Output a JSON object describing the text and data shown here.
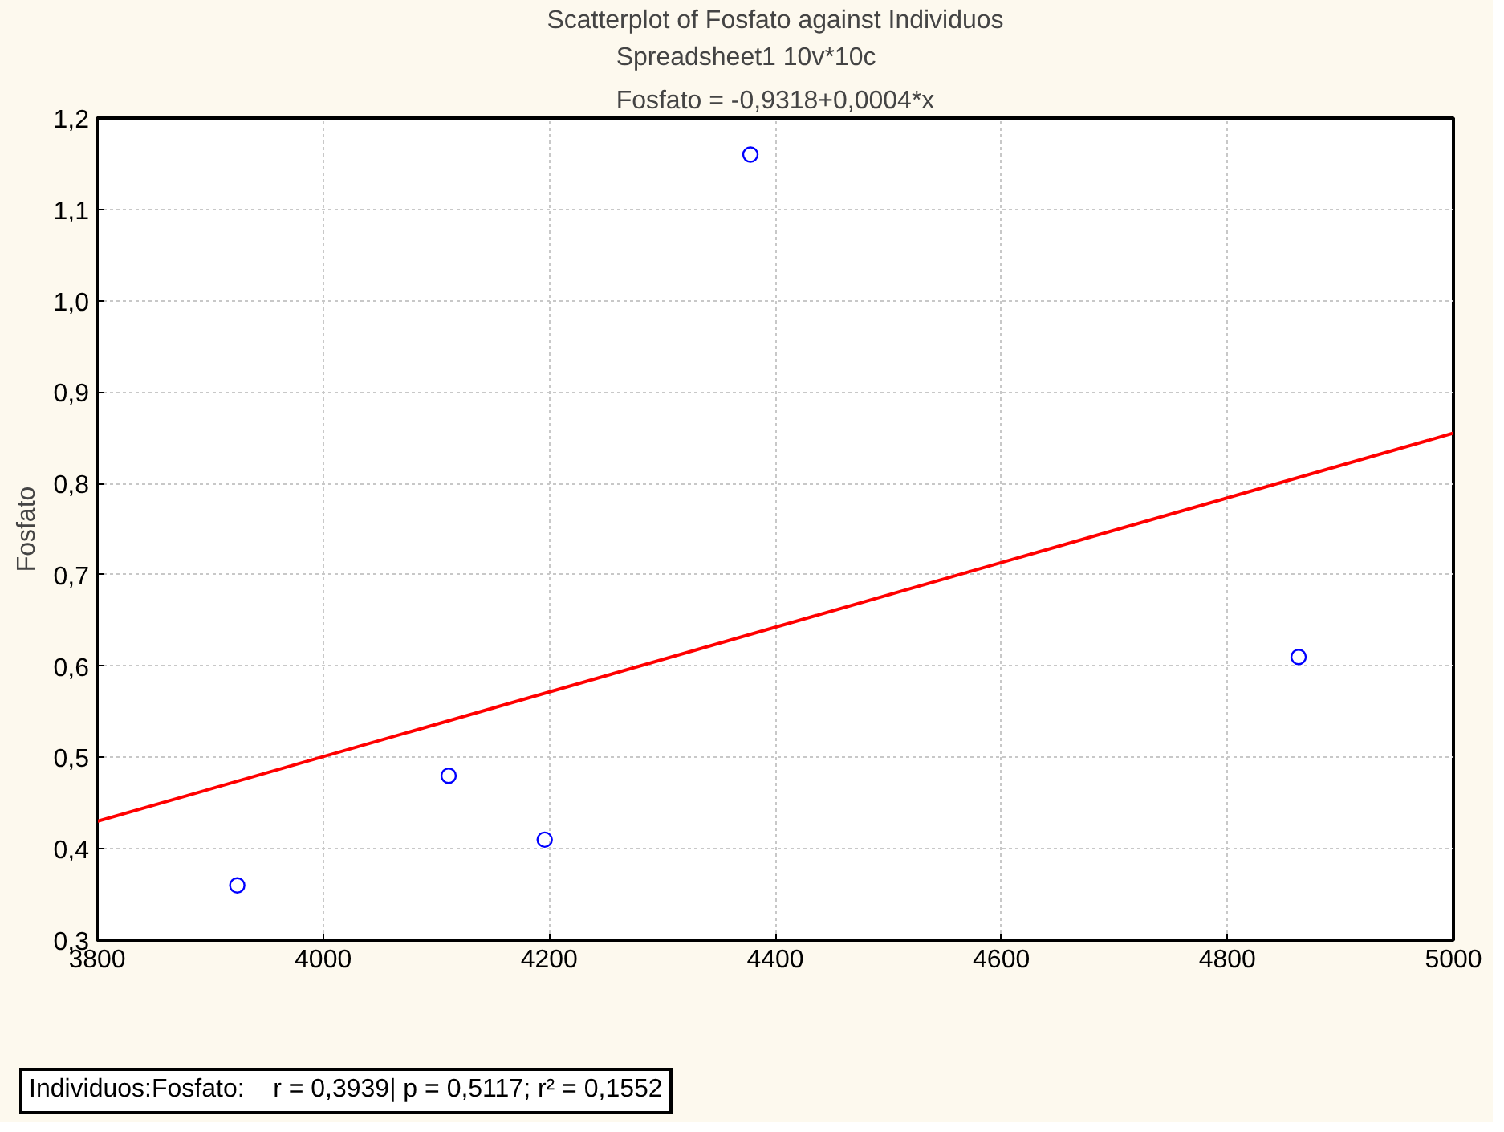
{
  "chart_data": {
    "type": "scatter",
    "title": "Scatterplot of Fosfato against Individuos",
    "subtitle": "Spreadsheet1 10v*10c\nFosfato = -0,9318+0,0004*x",
    "ylabel": "Fosfato",
    "series": [
      {
        "marker": "circle",
        "color": "#0000ff",
        "x": [
          3924,
          4111,
          4196,
          4378,
          4863
        ],
        "values": [
          0.36,
          0.48,
          0.41,
          1.16,
          0.61
        ]
      },
      {
        "type": "line",
        "marker": "none",
        "color": "#ff0000",
        "x": [
          3800,
          5000
        ],
        "values": [
          0.43,
          0.855
        ]
      }
    ],
    "xlim": [
      3800,
      5000
    ],
    "xticks": [
      3800,
      4000,
      4200,
      4400,
      4600,
      4800,
      5000
    ],
    "ylim": [
      0.3,
      1.2
    ],
    "yticks": [
      {
        "value": 0.3,
        "label": "0,3"
      },
      {
        "value": 0.4,
        "label": "0,4"
      },
      {
        "value": 0.5,
        "label": "0,5"
      },
      {
        "value": 0.6,
        "label": "0,6"
      },
      {
        "value": 0.7,
        "label": "0,7"
      },
      {
        "value": 0.8,
        "label": "0,8"
      },
      {
        "value": 0.9,
        "label": "0,9"
      },
      {
        "value": 1.0,
        "label": "1,0"
      },
      {
        "value": 1.1,
        "label": "1,1"
      },
      {
        "value": 1.2,
        "label": "1,2"
      }
    ],
    "grid": true,
    "annotations": [
      "Individuos:Fosfato:    r = 0,3939| p = 0,5117; r² = 0,1552"
    ]
  }
}
